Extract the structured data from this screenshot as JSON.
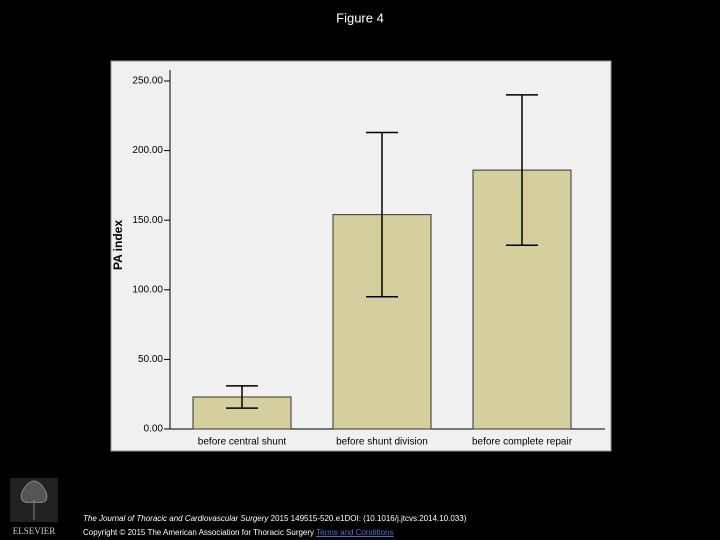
{
  "figure_label": "Figure 4",
  "chart_data": {
    "type": "bar",
    "y_label": "PA index",
    "categories": [
      "before central shunt",
      "before shunt division",
      "before complete repair"
    ],
    "values": [
      23,
      154,
      186
    ],
    "errors": [
      8,
      59,
      54
    ],
    "color": "#d4cf9c",
    "ylim": [
      0,
      250
    ],
    "yticks": [
      {
        "value": 0,
        "label": "0.00"
      },
      {
        "value": 50,
        "label": "50.00"
      },
      {
        "value": 100,
        "label": "100.00"
      },
      {
        "value": 150,
        "label": "150.00"
      },
      {
        "value": 200,
        "label": "200.00"
      },
      {
        "value": 250,
        "label": "250.00"
      }
    ]
  },
  "footer": {
    "publisher": "ELSEVIER",
    "journal": "The Journal of Thoracic and Cardiovascular Surgery",
    "details": "2015 149515-520.e1DOI: (10.1016/j.jtcvs.2014.10.033)",
    "copyright": "Copyright © 2015 The American Association for Thoracic Surgery",
    "link": "Terms and Conditions"
  }
}
